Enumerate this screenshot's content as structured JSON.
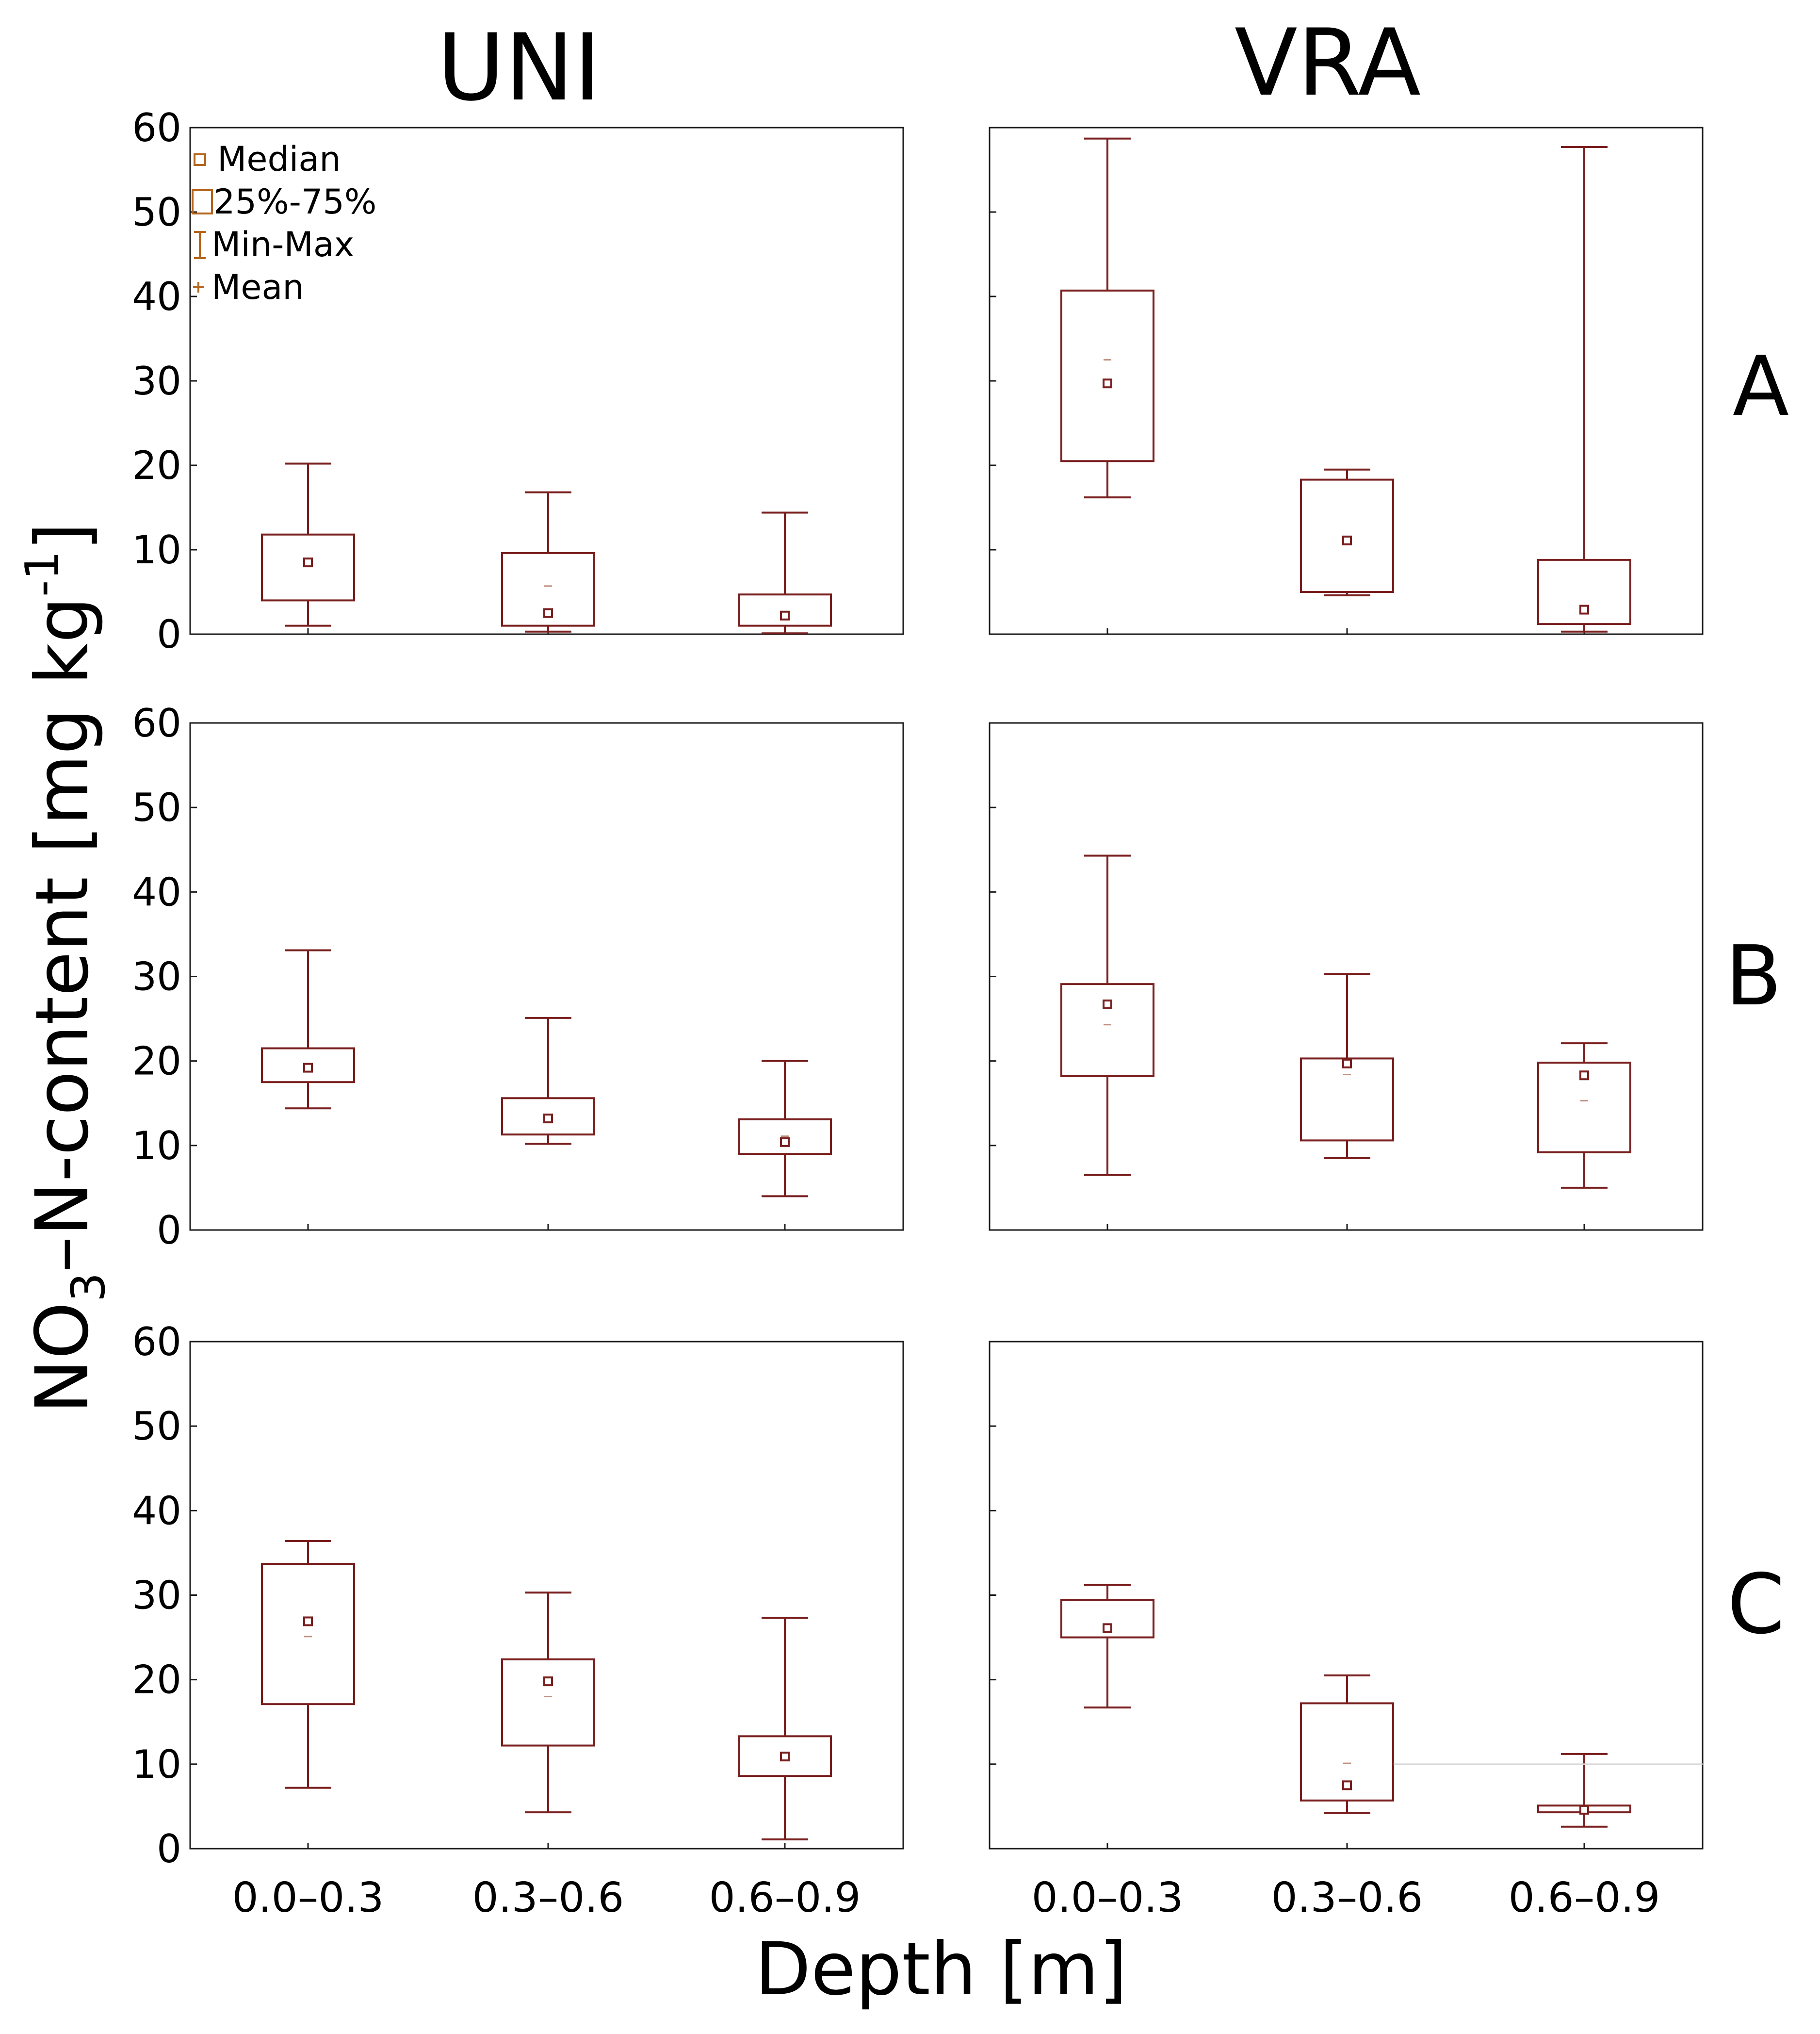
{
  "figure": {
    "columns": [
      "UNI",
      "VRA"
    ],
    "rows": [
      "A",
      "B",
      "C"
    ],
    "xlabel": "Depth [m]",
    "ylabel": {
      "main": "NO",
      "sub": "3",
      "rest": "–N-content [mg kg",
      "sup": "-1",
      "end": "]"
    },
    "legend": [
      "Median",
      "25%-75%",
      "Min-Max",
      "Mean"
    ]
  },
  "colors": {
    "box": "#7a1f1f",
    "legend": "#b5651d",
    "frame": "#1a1a1a"
  },
  "chart_data": [
    {
      "type": "box",
      "panel": "UNI-A",
      "column": "UNI",
      "row": "A",
      "ylim": [
        0,
        60
      ],
      "yticks": [
        0,
        10,
        20,
        30,
        40,
        50,
        60
      ],
      "categories": [
        "0.0–0.3",
        "0.3–0.6",
        "0.6–0.9"
      ],
      "boxes": [
        {
          "min": 1,
          "q1": 4,
          "median": 8.5,
          "mean": 8.5,
          "q3": 11.8,
          "max": 20.2
        },
        {
          "min": 0.3,
          "q1": 1,
          "median": 2.5,
          "mean": 5.7,
          "q3": 9.6,
          "max": 16.8
        },
        {
          "min": 0.1,
          "q1": 1,
          "median": 2.2,
          "mean": 2.2,
          "q3": 4.7,
          "max": 14.4
        }
      ]
    },
    {
      "type": "box",
      "panel": "VRA-A",
      "column": "VRA",
      "row": "A",
      "ylim": [
        0,
        60
      ],
      "yticks": [
        0,
        10,
        20,
        30,
        40,
        50,
        60
      ],
      "categories": [
        "0.0–0.3",
        "0.3–0.6",
        "0.6–0.9"
      ],
      "boxes": [
        {
          "min": 16.2,
          "q1": 20.5,
          "median": 29.7,
          "mean": 32.5,
          "q3": 40.7,
          "max": 58.7
        },
        {
          "min": 4.6,
          "q1": 5,
          "median": 11.1,
          "mean": 11.1,
          "q3": 18.3,
          "max": 19.5
        },
        {
          "min": 0.3,
          "q1": 1.2,
          "median": 2.9,
          "mean": 2.9,
          "q3": 8.8,
          "max": 57.7
        }
      ]
    },
    {
      "type": "box",
      "panel": "UNI-B",
      "column": "UNI",
      "row": "B",
      "ylim": [
        0,
        60
      ],
      "yticks": [
        0,
        10,
        20,
        30,
        40,
        50,
        60
      ],
      "categories": [
        "0.0–0.3",
        "0.3–0.6",
        "0.6–0.9"
      ],
      "boxes": [
        {
          "min": 14.4,
          "q1": 17.5,
          "median": 19.2,
          "mean": 19.2,
          "q3": 21.5,
          "max": 33.1
        },
        {
          "min": 10.2,
          "q1": 11.3,
          "median": 13.2,
          "mean": 13.2,
          "q3": 15.6,
          "max": 25.1
        },
        {
          "min": 4,
          "q1": 9,
          "median": 10.4,
          "mean": 11.1,
          "q3": 13.1,
          "max": 20
        }
      ]
    },
    {
      "type": "box",
      "panel": "VRA-B",
      "column": "VRA",
      "row": "B",
      "ylim": [
        0,
        60
      ],
      "yticks": [
        0,
        10,
        20,
        30,
        40,
        50,
        60
      ],
      "categories": [
        "0.0–0.3",
        "0.3–0.6",
        "0.6–0.9"
      ],
      "boxes": [
        {
          "min": 6.5,
          "q1": 18.2,
          "median": 26.7,
          "mean": 24.3,
          "q3": 29.1,
          "max": 44.3
        },
        {
          "min": 8.5,
          "q1": 10.6,
          "median": 19.7,
          "mean": 18.4,
          "q3": 20.3,
          "max": 30.3
        },
        {
          "min": 5,
          "q1": 9.2,
          "median": 18.3,
          "mean": 15.3,
          "q3": 19.8,
          "max": 22.1
        }
      ]
    },
    {
      "type": "box",
      "panel": "UNI-C",
      "column": "UNI",
      "row": "C",
      "ylim": [
        0,
        60
      ],
      "yticks": [
        0,
        10,
        20,
        30,
        40,
        50,
        60
      ],
      "categories": [
        "0.0–0.3",
        "0.3–0.6",
        "0.6–0.9"
      ],
      "boxes": [
        {
          "min": 7.2,
          "q1": 17.1,
          "median": 26.9,
          "mean": 25.1,
          "q3": 33.7,
          "max": 36.4
        },
        {
          "min": 4.3,
          "q1": 12.2,
          "median": 19.8,
          "mean": 18,
          "q3": 22.4,
          "max": 30.3
        },
        {
          "min": 1.1,
          "q1": 8.6,
          "median": 10.9,
          "mean": 10.9,
          "q3": 13.3,
          "max": 27.3
        }
      ]
    },
    {
      "type": "box",
      "panel": "VRA-C",
      "column": "VRA",
      "row": "C",
      "ylim": [
        0,
        60
      ],
      "yticks": [
        0,
        10,
        20,
        30,
        40,
        50,
        60
      ],
      "categories": [
        "0.0–0.3",
        "0.3–0.6",
        "0.6–0.9"
      ],
      "boxes": [
        {
          "min": 16.7,
          "q1": 25,
          "median": 26.1,
          "mean": 26.1,
          "q3": 29.4,
          "max": 31.2
        },
        {
          "min": 4.2,
          "q1": 5.7,
          "median": 7.5,
          "mean": 10.1,
          "q3": 17.2,
          "max": 20.5
        },
        {
          "min": 2.6,
          "q1": 4.3,
          "median": 4.6,
          "mean": 4.6,
          "q3": 5.1,
          "max": 11.2
        }
      ]
    }
  ]
}
